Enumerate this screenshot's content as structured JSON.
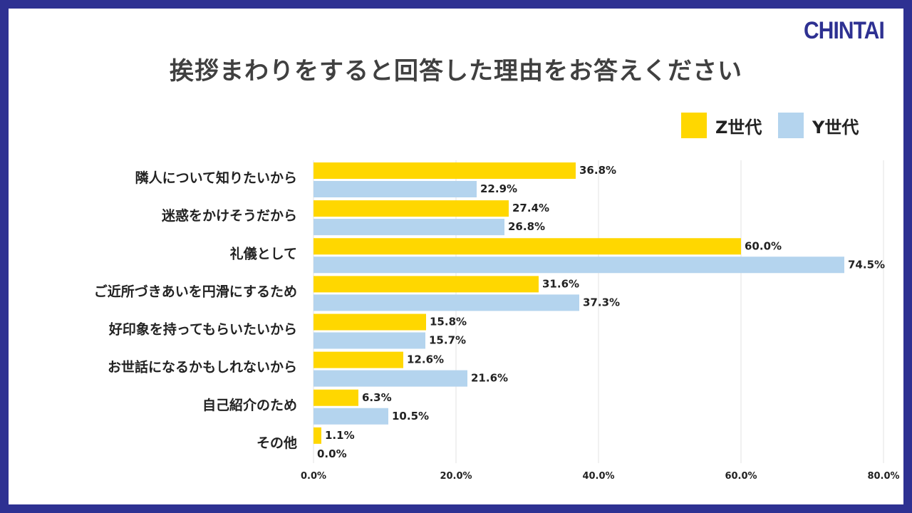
{
  "brand": {
    "logo_text": "CHINTAI",
    "logo_color": "#2e3192",
    "frame_color": "#2e3192"
  },
  "title": "挨拶まわりをすると回答した理由をお答えください",
  "legend": [
    {
      "name": "Z世代",
      "color": "#ffd700"
    },
    {
      "name": "Y世代",
      "color": "#b4d4ee"
    }
  ],
  "chart_data": {
    "type": "bar",
    "orientation": "horizontal",
    "categories": [
      "隣人について知りたいから",
      "迷惑をかけそうだから",
      "礼儀として",
      "ご近所づきあいを円滑にするため",
      "好印象を持ってもらいたいから",
      "お世話になるかもしれないから",
      "自己紹介のため",
      "その他"
    ],
    "series": [
      {
        "name": "Z世代",
        "color": "#ffd700",
        "values": [
          36.8,
          27.4,
          60.0,
          31.6,
          15.8,
          12.6,
          6.3,
          1.1
        ],
        "labels": [
          "36.8%",
          "27.4%",
          "60.0%",
          "31.6%",
          "15.8%",
          "12.6%",
          "6.3%",
          "1.1%"
        ]
      },
      {
        "name": "Y世代",
        "color": "#b4d4ee",
        "values": [
          22.9,
          26.8,
          74.5,
          37.3,
          15.7,
          21.6,
          10.5,
          0.0
        ],
        "labels": [
          "22.9%",
          "26.8%",
          "74.5%",
          "37.3%",
          "15.7%",
          "21.6%",
          "10.5%",
          "0.0%"
        ]
      }
    ],
    "xlim": [
      0,
      80
    ],
    "xticks": [
      0,
      20,
      40,
      60,
      80
    ],
    "xtick_labels": [
      "0.0%",
      "20.0%",
      "40.0%",
      "60.0%",
      "80.0%"
    ],
    "grid": true,
    "legend_position": "top-right"
  }
}
